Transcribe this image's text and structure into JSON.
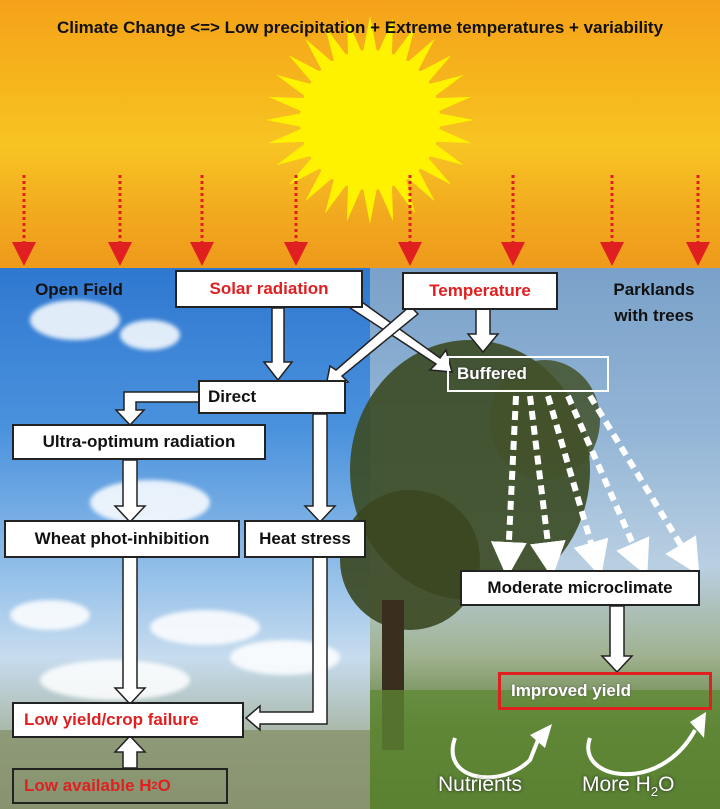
{
  "title": "Climate Change <=> Low precipitation + Extreme temperatures + variability",
  "left_panel_label": "Open Field",
  "right_panel_label": "Parklands with trees",
  "nodes": {
    "solar_radiation": "Solar radiation",
    "temperature": "Temperature",
    "direct": "Direct",
    "buffered": "Buffered",
    "ultra_optimum": "Ultra-optimum radiation",
    "photoinhibition": "Wheat phot-inhibition",
    "heat_stress": "Heat stress",
    "low_yield": "Low yield/crop failure",
    "low_water": "Low available H",
    "low_water_sub": "2",
    "low_water_end": "O",
    "moderate_microclimate": "Moderate microclimate",
    "improved_yield": "Improved yield"
  },
  "bottom": {
    "nutrients": "Nutrients",
    "more_water": "More H",
    "more_water_sub": "2",
    "more_water_end": "O"
  },
  "colors": {
    "accent_red": "#e02020",
    "sun": "#fff200",
    "sky_top": "#f6b51c"
  }
}
